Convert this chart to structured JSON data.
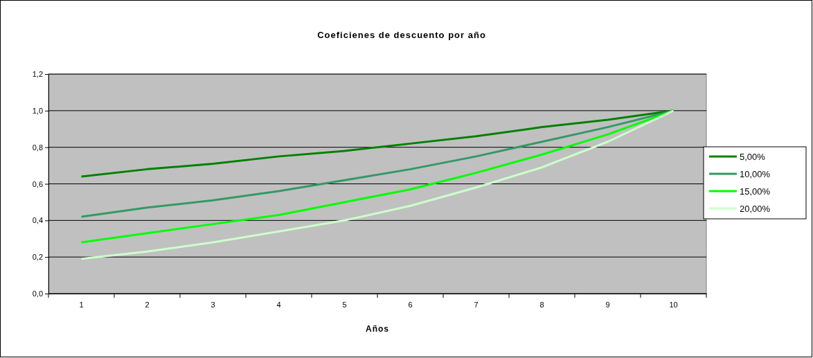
{
  "chart_data": {
    "type": "line",
    "title": "Coeficienes de descuento por año",
    "xlabel": "Años",
    "categories": [
      "1",
      "2",
      "3",
      "4",
      "5",
      "6",
      "7",
      "8",
      "9",
      "10"
    ],
    "series": [
      {
        "name": "5,00%",
        "color": "#008000",
        "values": [
          0.64,
          0.68,
          0.71,
          0.75,
          0.78,
          0.82,
          0.86,
          0.91,
          0.95,
          1.0
        ]
      },
      {
        "name": "10,00%",
        "color": "#339966",
        "values": [
          0.42,
          0.47,
          0.51,
          0.56,
          0.62,
          0.68,
          0.75,
          0.83,
          0.91,
          1.0
        ]
      },
      {
        "name": "15,00%",
        "color": "#00ff00",
        "values": [
          0.28,
          0.33,
          0.38,
          0.43,
          0.5,
          0.57,
          0.66,
          0.76,
          0.87,
          1.0
        ]
      },
      {
        "name": "20,00%",
        "color": "#ccffcc",
        "values": [
          0.19,
          0.23,
          0.28,
          0.34,
          0.4,
          0.48,
          0.58,
          0.69,
          0.83,
          1.0
        ]
      }
    ],
    "ylim": [
      0,
      1.2
    ],
    "yticks": [
      {
        "value": 0,
        "label": "0,0"
      },
      {
        "value": 0.2,
        "label": "0,2"
      },
      {
        "value": 0.4,
        "label": "0,4"
      },
      {
        "value": 0.6,
        "label": "0,6"
      },
      {
        "value": 0.8,
        "label": "0,8"
      },
      {
        "value": 1.0,
        "label": "1,0"
      },
      {
        "value": 1.2,
        "label": "1,2"
      }
    ],
    "grid": "y",
    "legend": "right",
    "marker": "none",
    "line_style": "solid"
  }
}
